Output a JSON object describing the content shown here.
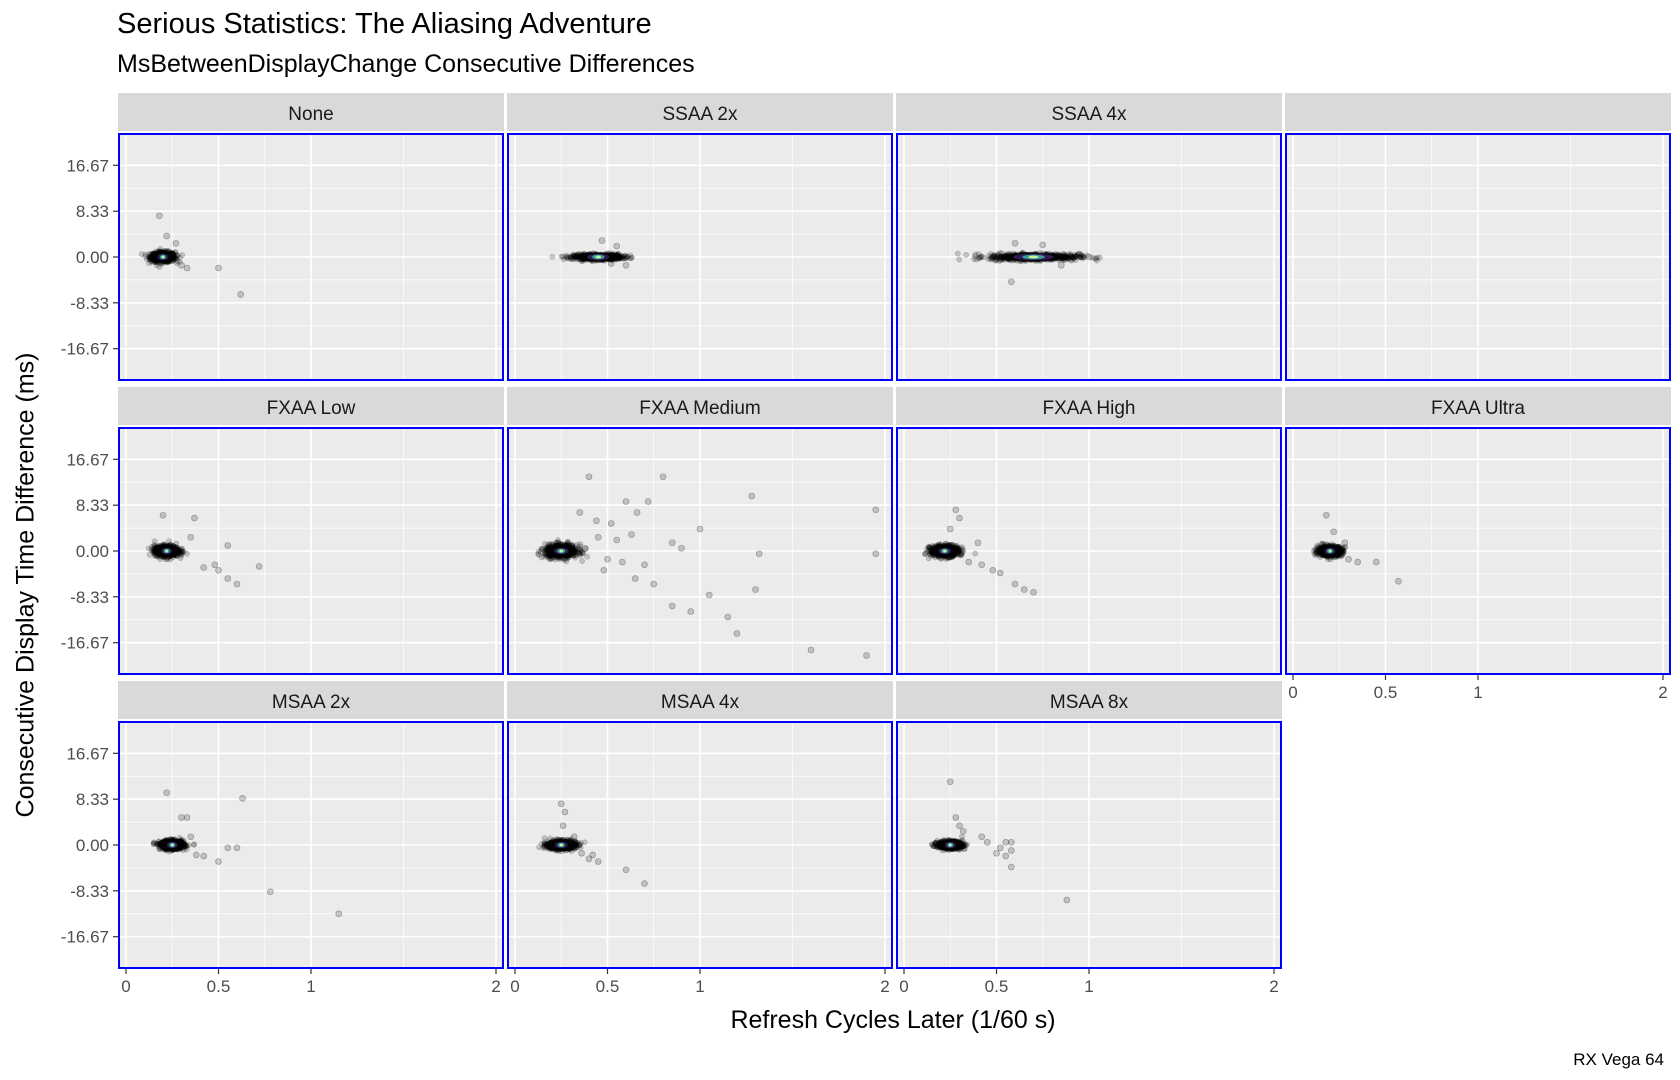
{
  "title": "Serious Statistics: The Aliasing Adventure",
  "subtitle": "MsBetweenDisplayChange Consecutive Differences",
  "caption": "RX Vega 64",
  "colors": {
    "panel_bg": "#ebebeb",
    "grid": "#ffffff",
    "strip_bg": "#d9d9d9",
    "panel_border": "#0000ff",
    "point": "#000000",
    "density_high": "#c7f5a0",
    "density_mid": "#3bb3a0",
    "density_low": "#3d1f63"
  },
  "chart_data": {
    "type": "scatter",
    "xlabel": "Refresh Cycles Later (1/60 s)",
    "ylabel": "Consecutive Display Time Difference (ms)",
    "xlim": [
      0,
      2
    ],
    "ylim": [
      -20,
      20
    ],
    "x_ticks": [
      0,
      0.5,
      1,
      2
    ],
    "x_tick_labels": [
      "0",
      "0.5",
      "1",
      "2"
    ],
    "y_ticks": [
      -16.67,
      -8.33,
      0,
      8.33,
      16.67
    ],
    "y_tick_labels": [
      "-16.67",
      "-8.33",
      "0.00",
      "8.33",
      "16.67"
    ],
    "grid": true,
    "facets": [
      {
        "name": "None",
        "center": [
          0.2,
          0.0
        ],
        "spread": [
          0.06,
          0.9
        ],
        "outliers": [
          [
            0.18,
            7.5
          ],
          [
            0.22,
            3.8
          ],
          [
            0.27,
            2.5
          ],
          [
            0.3,
            -1.5
          ],
          [
            0.33,
            -2.0
          ],
          [
            0.5,
            -2.0
          ],
          [
            0.62,
            -6.8
          ]
        ]
      },
      {
        "name": "SSAA 2x",
        "center": [
          0.45,
          0.0
        ],
        "spread": [
          0.12,
          0.5
        ],
        "outliers": [
          [
            0.47,
            3.0
          ],
          [
            0.55,
            2.0
          ],
          [
            0.6,
            -1.5
          ],
          [
            0.52,
            -1.2
          ]
        ]
      },
      {
        "name": "SSAA 4x",
        "center": [
          0.7,
          0.0
        ],
        "spread": [
          0.22,
          0.6
        ],
        "outliers": [
          [
            0.6,
            2.5
          ],
          [
            0.75,
            2.2
          ],
          [
            0.85,
            -1.5
          ],
          [
            0.58,
            -4.5
          ],
          [
            0.95,
            0.5
          ],
          [
            1.0,
            0.0
          ]
        ]
      },
      {
        "name": "",
        "center": null,
        "spread": null,
        "outliers": []
      },
      {
        "name": "FXAA Low",
        "center": [
          0.22,
          0.0
        ],
        "spread": [
          0.06,
          1.0
        ],
        "outliers": [
          [
            0.2,
            6.5
          ],
          [
            0.37,
            6.0
          ],
          [
            0.35,
            2.5
          ],
          [
            0.42,
            -3.0
          ],
          [
            0.48,
            -2.5
          ],
          [
            0.55,
            1.0
          ],
          [
            0.55,
            -5.0
          ],
          [
            0.6,
            -6.0
          ],
          [
            0.72,
            -2.8
          ],
          [
            0.5,
            -3.5
          ]
        ]
      },
      {
        "name": "FXAA Medium",
        "center": [
          0.25,
          0.0
        ],
        "spread": [
          0.08,
          1.2
        ],
        "outliers": [
          [
            0.4,
            13.5
          ],
          [
            0.35,
            7.0
          ],
          [
            0.44,
            5.5
          ],
          [
            0.52,
            5.0
          ],
          [
            0.6,
            9.0
          ],
          [
            0.72,
            9.0
          ],
          [
            0.8,
            13.5
          ],
          [
            0.63,
            3.0
          ],
          [
            0.7,
            -2.5
          ],
          [
            0.75,
            -6.0
          ],
          [
            0.55,
            2.0
          ],
          [
            0.48,
            -3.5
          ],
          [
            0.65,
            -5.0
          ],
          [
            0.85,
            -10.0
          ],
          [
            0.95,
            -11.0
          ],
          [
            1.05,
            -8.0
          ],
          [
            1.15,
            -12.0
          ],
          [
            1.2,
            -15.0
          ],
          [
            1.3,
            -7.0
          ],
          [
            1.28,
            10.0
          ],
          [
            1.32,
            -0.5
          ],
          [
            1.6,
            -18.0
          ],
          [
            1.9,
            -19.0
          ],
          [
            1.95,
            7.5
          ],
          [
            1.95,
            -0.5
          ],
          [
            0.9,
            0.5
          ],
          [
            1.0,
            4.0
          ],
          [
            0.58,
            -2.0
          ],
          [
            0.45,
            2.5
          ],
          [
            0.38,
            0.5
          ],
          [
            0.66,
            7.0
          ],
          [
            0.85,
            1.5
          ],
          [
            0.5,
            -1.5
          ]
        ]
      },
      {
        "name": "FXAA High",
        "center": [
          0.22,
          0.0
        ],
        "spread": [
          0.07,
          1.0
        ],
        "outliers": [
          [
            0.28,
            7.5
          ],
          [
            0.3,
            6.0
          ],
          [
            0.25,
            4.0
          ],
          [
            0.35,
            -2.0
          ],
          [
            0.42,
            -2.5
          ],
          [
            0.48,
            -3.5
          ],
          [
            0.52,
            -4.0
          ],
          [
            0.6,
            -6.0
          ],
          [
            0.65,
            -7.0
          ],
          [
            0.7,
            -7.5
          ],
          [
            0.4,
            1.5
          ]
        ]
      },
      {
        "name": "FXAA Ultra",
        "center": [
          0.2,
          0.0
        ],
        "spread": [
          0.06,
          0.9
        ],
        "outliers": [
          [
            0.18,
            6.5
          ],
          [
            0.22,
            3.5
          ],
          [
            0.3,
            -1.5
          ],
          [
            0.35,
            -2.0
          ],
          [
            0.45,
            -2.0
          ],
          [
            0.57,
            -5.5
          ],
          [
            0.28,
            1.5
          ]
        ]
      },
      {
        "name": "MSAA 2x",
        "center": [
          0.25,
          0.0
        ],
        "spread": [
          0.06,
          0.8
        ],
        "outliers": [
          [
            0.22,
            9.5
          ],
          [
            0.3,
            5.0
          ],
          [
            0.33,
            5.0
          ],
          [
            0.35,
            1.5
          ],
          [
            0.38,
            -1.8
          ],
          [
            0.5,
            -3.0
          ],
          [
            0.55,
            -0.5
          ],
          [
            0.6,
            -0.5
          ],
          [
            0.63,
            8.5
          ],
          [
            0.78,
            -8.5
          ],
          [
            1.15,
            -12.5
          ],
          [
            0.42,
            -2.0
          ]
        ]
      },
      {
        "name": "MSAA 4x",
        "center": [
          0.25,
          0.0
        ],
        "spread": [
          0.07,
          0.8
        ],
        "outliers": [
          [
            0.25,
            7.5
          ],
          [
            0.27,
            6.0
          ],
          [
            0.26,
            3.5
          ],
          [
            0.32,
            1.5
          ],
          [
            0.36,
            -1.5
          ],
          [
            0.4,
            -2.5
          ],
          [
            0.45,
            -3.0
          ],
          [
            0.6,
            -4.5
          ],
          [
            0.7,
            -7.0
          ],
          [
            0.42,
            -1.8
          ]
        ]
      },
      {
        "name": "MSAA 8x",
        "center": [
          0.25,
          0.0
        ],
        "spread": [
          0.06,
          0.7
        ],
        "outliers": [
          [
            0.25,
            11.5
          ],
          [
            0.28,
            5.0
          ],
          [
            0.3,
            3.5
          ],
          [
            0.32,
            2.5
          ],
          [
            0.42,
            1.5
          ],
          [
            0.45,
            0.5
          ],
          [
            0.5,
            -1.5
          ],
          [
            0.52,
            -0.5
          ],
          [
            0.55,
            -2.0
          ],
          [
            0.55,
            0.5
          ],
          [
            0.58,
            -4.0
          ],
          [
            0.58,
            0.5
          ],
          [
            0.58,
            -1.0
          ],
          [
            0.88,
            -10.0
          ]
        ]
      }
    ]
  }
}
